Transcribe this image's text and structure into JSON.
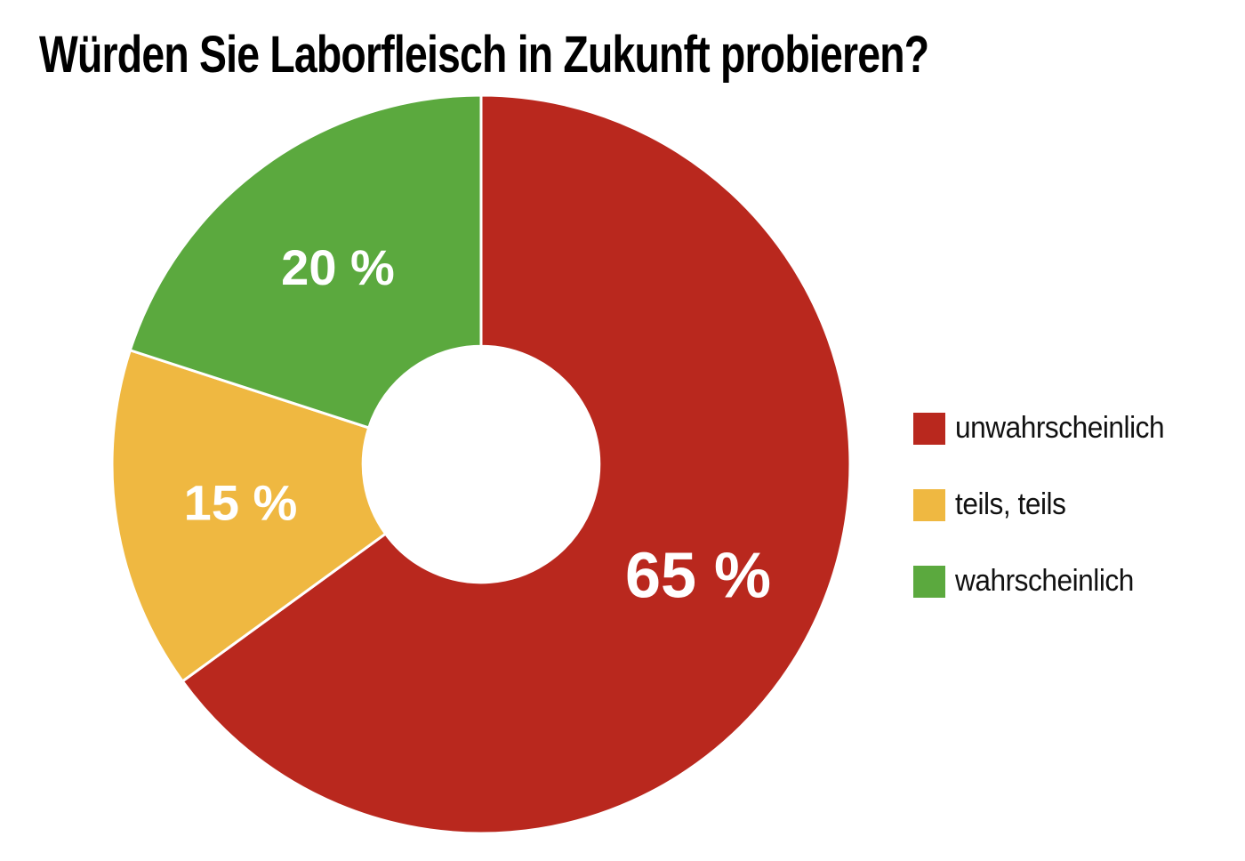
{
  "title": "Würden Sie Laborfleisch in Zukunft probieren?",
  "colors": {
    "background": "#ffffff",
    "title_text": "#000000",
    "slice_label_text": "#ffffff",
    "legend_text": "#111111",
    "slice_separator": "#ffffff"
  },
  "chart_data": {
    "type": "pie",
    "subtype": "donut",
    "title": "Würden Sie Laborfleisch in Zukunft probieren?",
    "unit": "%",
    "total": 100,
    "start_angle_deg": 0,
    "direction": "clockwise",
    "inner_radius_fraction": 0.32,
    "grid": false,
    "legend_position": "right",
    "slices": [
      {
        "label": "unwahrscheinlich",
        "value": 65,
        "display": "65 %",
        "color": "#b9281e"
      },
      {
        "label": "teils, teils",
        "value": 15,
        "display": "15 %",
        "color": "#efb841"
      },
      {
        "label": "wahrscheinlich",
        "value": 20,
        "display": "20 %",
        "color": "#5ba93e"
      }
    ]
  }
}
